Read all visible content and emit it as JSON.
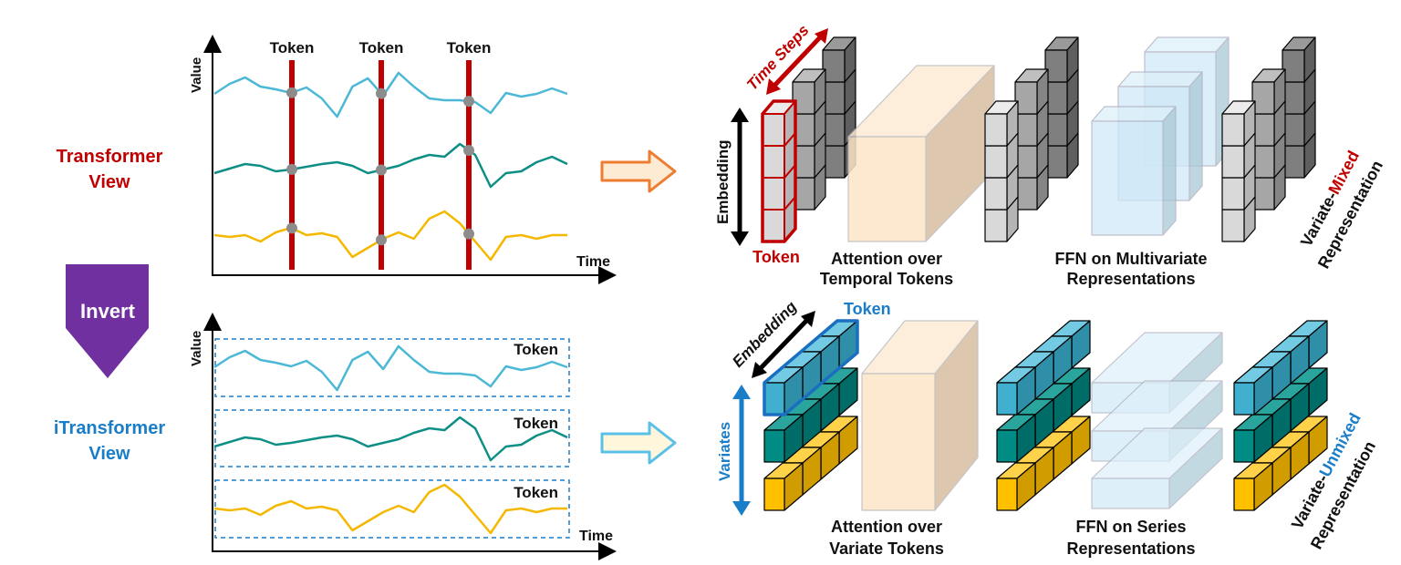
{
  "left": {
    "transformer_view": [
      "Transformer",
      "View"
    ],
    "itransformer_view": [
      "iTransformer",
      "View"
    ],
    "invert_label": "Invert",
    "top_chart": {
      "ylabel": "Value",
      "xlabel": "Time",
      "token_labels": [
        "Token",
        "Token",
        "Token"
      ]
    },
    "bottom_chart": {
      "ylabel": "Value",
      "xlabel": "Time",
      "token_labels": [
        "Token",
        "Token",
        "Token"
      ]
    },
    "series": [
      {
        "color": "#4bb8d6",
        "values": [
          197,
          208,
          215,
          205,
          202,
          198,
          204,
          192,
          172,
          205,
          214,
          195,
          220,
          205,
          192,
          190,
          190,
          188,
          176,
          198,
          194,
          197,
          203,
          197
        ]
      },
      {
        "color": "#0e8f86",
        "values": [
          110,
          115,
          120,
          118,
          112,
          114,
          117,
          120,
          122,
          118,
          110,
          114,
          118,
          125,
          130,
          128,
          142,
          130,
          95,
          110,
          112,
          122,
          128,
          120
        ]
      },
      {
        "color": "#f5b800",
        "values": [
          42,
          40,
          42,
          35,
          45,
          50,
          42,
          44,
          40,
          18,
          28,
          38,
          45,
          38,
          60,
          68,
          55,
          35,
          15,
          40,
          42,
          38,
          42,
          42
        ]
      }
    ]
  },
  "top": {
    "time_steps": "Time Steps",
    "embedding": "Embedding",
    "token": "Token",
    "attention": [
      "Attention over",
      "Temporal Tokens"
    ],
    "ffn": [
      "FFN on Multivariate",
      "Representations"
    ],
    "repr_line1_prefix": "Variate-",
    "repr_line1_emph": "Mixed",
    "repr_line2": "Representation"
  },
  "bottom": {
    "embedding": "Embedding",
    "token": "Token",
    "variates": "Variates",
    "attention": [
      "Attention over",
      "Variate Tokens"
    ],
    "ffn": [
      "FFN on Series",
      "Representations"
    ],
    "repr_line1_prefix": "Variate-",
    "repr_line1_emph": "Unmixed",
    "repr_line2": "Representation"
  },
  "colors": {
    "red": "#c00000",
    "blue": "#1a7dc8",
    "purple": "#7030a0",
    "orange_arrow": "#ed7d31",
    "cyan_arrow": "#5bc0e8",
    "peach": "#fde6c8",
    "ffn_blue": "#cfe9f7"
  }
}
